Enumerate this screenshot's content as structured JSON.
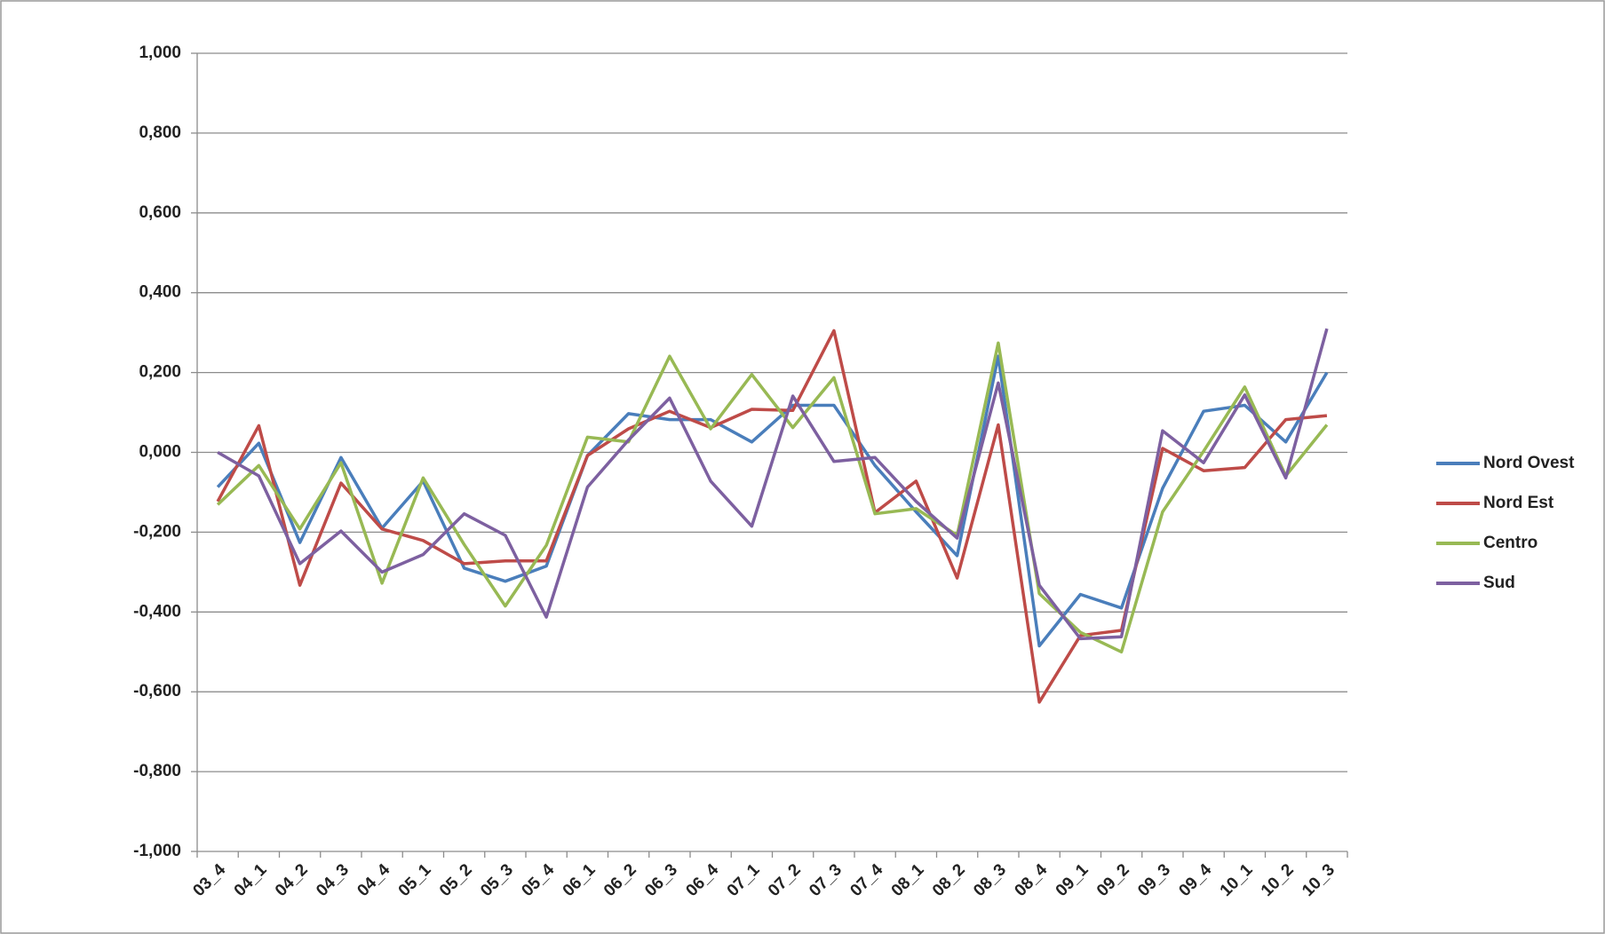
{
  "chart_data": {
    "type": "line",
    "categories": [
      "03_4",
      "04_1",
      "04_2",
      "04_3",
      "04_4",
      "05_1",
      "05_2",
      "05_3",
      "05_4",
      "06_1",
      "06_2",
      "06_3",
      "06_4",
      "07_1",
      "07_2",
      "07_3",
      "07_4",
      "08_1",
      "08_2",
      "08_3",
      "08_4",
      "09_1",
      "09_2",
      "09_3",
      "09_4",
      "10_1",
      "10_2",
      "10_3"
    ],
    "series": [
      {
        "name": "Nord Ovest",
        "color": "#4a7ebb",
        "values": [
          -0.087,
          0.023,
          -0.226,
          -0.013,
          -0.19,
          -0.072,
          -0.29,
          -0.323,
          -0.285,
          -0.008,
          0.097,
          0.082,
          0.082,
          0.026,
          0.118,
          0.118,
          -0.033,
          -0.149,
          -0.259,
          0.241,
          -0.485,
          -0.356,
          -0.39,
          -0.09,
          0.103,
          0.118,
          0.026,
          0.2
        ]
      },
      {
        "name": "Nord Est",
        "color": "#be4b48",
        "values": [
          -0.123,
          0.067,
          -0.333,
          -0.077,
          -0.192,
          -0.221,
          -0.279,
          -0.272,
          -0.272,
          -0.008,
          0.059,
          0.103,
          0.062,
          0.108,
          0.105,
          0.305,
          -0.151,
          -0.072,
          -0.315,
          0.069,
          -0.626,
          -0.459,
          -0.446,
          0.01,
          -0.046,
          -0.038,
          0.082,
          0.092
        ]
      },
      {
        "name": "Centro",
        "color": "#98b954",
        "values": [
          -0.131,
          -0.033,
          -0.192,
          -0.026,
          -0.328,
          -0.064,
          -0.231,
          -0.385,
          -0.233,
          0.038,
          0.026,
          0.241,
          0.059,
          0.195,
          0.062,
          0.187,
          -0.154,
          -0.141,
          -0.208,
          0.274,
          -0.354,
          -0.451,
          -0.5,
          -0.149,
          0.003,
          0.164,
          -0.059,
          0.069
        ]
      },
      {
        "name": "Sud",
        "color": "#7d60a0",
        "values": [
          0,
          -0.059,
          -0.279,
          -0.197,
          -0.3,
          -0.256,
          -0.154,
          -0.208,
          -0.413,
          -0.087,
          0.031,
          0.136,
          -0.072,
          -0.185,
          0.141,
          -0.023,
          -0.013,
          -0.123,
          -0.215,
          0.174,
          -0.333,
          -0.467,
          -0.462,
          0.054,
          -0.026,
          0.144,
          -0.064,
          0.31
        ]
      }
    ],
    "ylim": [
      -1,
      1
    ],
    "yticks": [
      {
        "value": -1,
        "label": "-1,000"
      },
      {
        "value": -0.8,
        "label": "-0,800"
      },
      {
        "value": -0.6,
        "label": "-0,600"
      },
      {
        "value": -0.4,
        "label": "-0,400"
      },
      {
        "value": -0.2,
        "label": "-0,200"
      },
      {
        "value": 0,
        "label": "0,000"
      },
      {
        "value": 0.2,
        "label": "0,200"
      },
      {
        "value": 0.4,
        "label": "0,400"
      },
      {
        "value": 0.6,
        "label": "0,600"
      },
      {
        "value": 0.8,
        "label": "0,800"
      },
      {
        "value": 1,
        "label": "1,000"
      }
    ],
    "grid": true,
    "legend": "right"
  }
}
